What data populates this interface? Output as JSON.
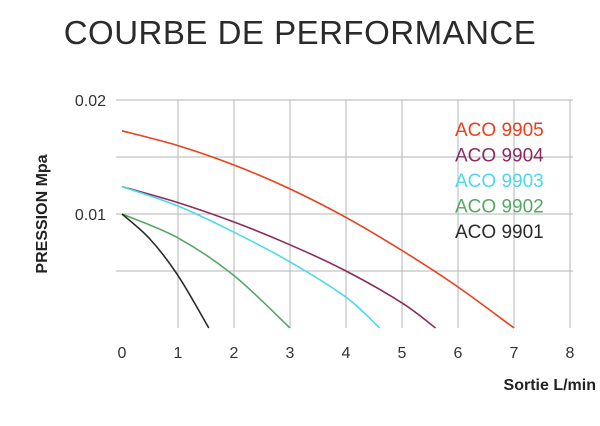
{
  "chart_data": {
    "type": "line",
    "title": "COURBE DE PERFORMANCE",
    "xlabel": "Sortie L/min",
    "ylabel": "PRESSION Mpa",
    "xlim": [
      0,
      8
    ],
    "ylim": [
      0,
      0.02
    ],
    "x_ticks": [
      "0",
      "1",
      "2",
      "3",
      "4",
      "5",
      "6",
      "7",
      "8"
    ],
    "y_tick_labels": [
      {
        "value": 0.02,
        "label": "0.02"
      },
      {
        "value": 0.01,
        "label": "0.01"
      }
    ],
    "grid": true,
    "legend_position": "top-right",
    "series": [
      {
        "name": "ACO 9905",
        "color": "#e8411c",
        "x": [
          0,
          1,
          2,
          3,
          4,
          5,
          6,
          7
        ],
        "y": [
          0.0173,
          0.016,
          0.0143,
          0.0122,
          0.0097,
          0.0068,
          0.0036,
          0.0
        ]
      },
      {
        "name": "ACO 9904",
        "color": "#8a2c5e",
        "x": [
          0,
          1,
          2,
          3,
          4,
          5,
          5.6
        ],
        "y": [
          0.0124,
          0.011,
          0.0093,
          0.0073,
          0.005,
          0.0022,
          0.0
        ]
      },
      {
        "name": "ACO 9903",
        "color": "#4dd9ec",
        "x": [
          0,
          1,
          2,
          3,
          4,
          4.6
        ],
        "y": [
          0.0124,
          0.0107,
          0.0084,
          0.0058,
          0.0027,
          0.0
        ]
      },
      {
        "name": "ACO 9902",
        "color": "#55a861",
        "x": [
          0,
          1,
          2,
          3
        ],
        "y": [
          0.01,
          0.0079,
          0.0046,
          0.0
        ]
      },
      {
        "name": "ACO 9901",
        "color": "#2b2b2b",
        "x": [
          0,
          0.5,
          1,
          1.55
        ],
        "y": [
          0.01,
          0.0078,
          0.0046,
          0.0
        ]
      }
    ]
  }
}
